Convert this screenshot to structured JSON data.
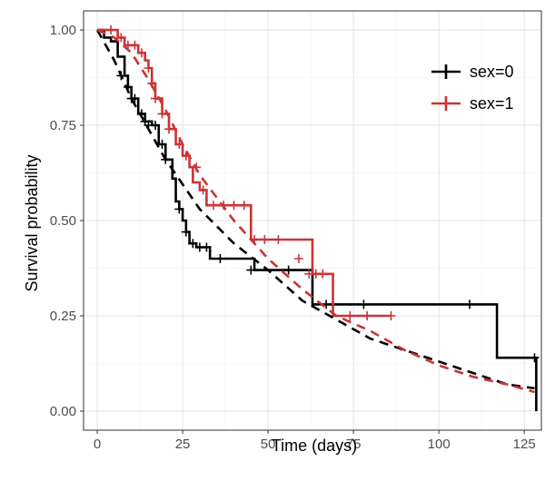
{
  "chart_data": {
    "type": "line",
    "title": "",
    "xlabel": "Time (days)",
    "ylabel": "Survival probability",
    "xlim": [
      -4,
      130
    ],
    "ylim": [
      -0.05,
      1.05
    ],
    "x_ticks": [
      0,
      25,
      50,
      75,
      100,
      125
    ],
    "x_tick_labels": [
      "0",
      "25",
      "50",
      "75",
      "100",
      "125"
    ],
    "y_ticks": [
      0,
      0.25,
      0.5,
      0.75,
      1.0
    ],
    "y_tick_labels": [
      "0.00",
      "0.25",
      "0.50",
      "0.75",
      "1.00"
    ],
    "grid": true,
    "legend_position": "top-right",
    "series": [
      {
        "name": "sex=0",
        "color": "#000000",
        "kind": "kaplan-meier step",
        "x": [
          0,
          2,
          4,
          6,
          8,
          9,
          10,
          12,
          14,
          16,
          18,
          20,
          22,
          23,
          24,
          25,
          26,
          27,
          29,
          33,
          46,
          63,
          64,
          117,
          128.5
        ],
        "y": [
          1.0,
          0.98,
          0.97,
          0.93,
          0.88,
          0.85,
          0.82,
          0.78,
          0.76,
          0.75,
          0.7,
          0.66,
          0.61,
          0.55,
          0.53,
          0.5,
          0.47,
          0.44,
          0.43,
          0.4,
          0.37,
          0.28,
          0.28,
          0.14,
          0.0
        ],
        "censor_x": [
          7,
          9,
          10,
          11,
          13,
          14,
          15,
          17,
          19,
          20,
          24,
          26,
          28,
          30,
          32,
          36,
          45,
          56,
          67,
          78,
          109,
          128
        ],
        "censor_y": [
          0.88,
          0.85,
          0.82,
          0.82,
          0.78,
          0.76,
          0.75,
          0.75,
          0.7,
          0.66,
          0.53,
          0.47,
          0.44,
          0.43,
          0.43,
          0.4,
          0.37,
          0.37,
          0.28,
          0.28,
          0.28,
          0.14
        ]
      },
      {
        "name": "sex=1",
        "color": "#cc3333",
        "kind": "kaplan-meier step",
        "x": [
          0,
          6,
          8,
          12,
          14,
          15,
          16,
          17,
          19,
          21,
          23,
          25,
          27,
          28,
          30,
          32,
          35,
          45,
          52,
          63,
          69,
          86
        ],
        "y": [
          1.0,
          0.98,
          0.96,
          0.94,
          0.92,
          0.9,
          0.86,
          0.82,
          0.78,
          0.74,
          0.7,
          0.67,
          0.64,
          0.6,
          0.58,
          0.54,
          0.54,
          0.45,
          0.45,
          0.36,
          0.25,
          0.25
        ],
        "censor_x": [
          4,
          7,
          9,
          11,
          13,
          15,
          16,
          17,
          19,
          21,
          24,
          26,
          29,
          31,
          34,
          37,
          40,
          43,
          46,
          49,
          53,
          59,
          62,
          64,
          66,
          74,
          79,
          86
        ],
        "censor_y": [
          1.0,
          0.98,
          0.96,
          0.96,
          0.94,
          0.9,
          0.86,
          0.82,
          0.78,
          0.74,
          0.7,
          0.67,
          0.64,
          0.58,
          0.54,
          0.54,
          0.54,
          0.54,
          0.45,
          0.45,
          0.45,
          0.4,
          0.36,
          0.36,
          0.36,
          0.25,
          0.25,
          0.25
        ]
      },
      {
        "name": "sex=0 fitted",
        "color": "#000000",
        "kind": "dashed fitted curve",
        "x": [
          0,
          5,
          10,
          20,
          30,
          40,
          50,
          60,
          70,
          80,
          90,
          100,
          110,
          120,
          128
        ],
        "y": [
          1.0,
          0.92,
          0.82,
          0.66,
          0.53,
          0.44,
          0.37,
          0.29,
          0.24,
          0.19,
          0.16,
          0.13,
          0.1,
          0.07,
          0.06
        ]
      },
      {
        "name": "sex=1 fitted",
        "color": "#cc3333",
        "kind": "dashed fitted curve",
        "x": [
          0,
          5,
          10,
          15,
          20,
          25,
          30,
          35,
          40,
          50,
          60,
          70,
          80,
          90,
          100,
          110,
          120,
          128
        ],
        "y": [
          1.0,
          0.98,
          0.94,
          0.87,
          0.79,
          0.7,
          0.62,
          0.56,
          0.5,
          0.4,
          0.32,
          0.25,
          0.21,
          0.16,
          0.12,
          0.09,
          0.07,
          0.05
        ]
      }
    ],
    "legend": [
      "sex=0",
      "sex=1"
    ]
  }
}
